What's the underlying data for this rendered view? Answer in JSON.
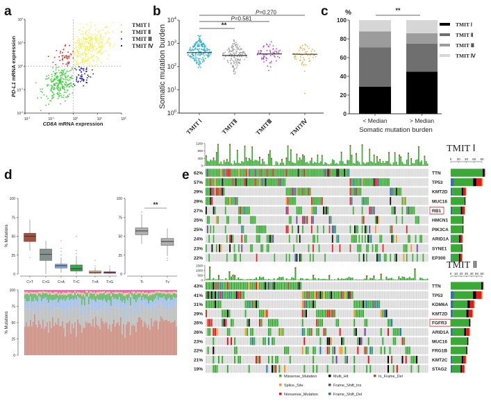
{
  "panels": {
    "a": "a",
    "b": "b",
    "c": "c",
    "d": "d",
    "e": "e"
  },
  "colors": {
    "tmit_scatter": [
      "#f5f056",
      "#3fd13f",
      "#d42a2a",
      "#1a1aa8"
    ],
    "tmit_burden": [
      "#2bb3d6",
      "#a8a8a8",
      "#b535d6",
      "#f5a836"
    ],
    "tmit_stack": [
      "#000000",
      "#6f6f6f",
      "#9c9c9c",
      "#d6d6d6"
    ],
    "substitutions": [
      "#a3503f",
      "#85918e",
      "#7fa7e3",
      "#3aa64a",
      "#f2a07c",
      "#c2205a"
    ],
    "titv": "#b0b0b0",
    "mutation_types": {
      "Missense_Mutation": "#3aa935",
      "Multi_Hit": "#000000",
      "In_Frame_Del": "#a0522d",
      "Splice_Site": "#f7941d",
      "Frame_Shift_Ins": "#6a3d9a",
      "Nonsense_Mutation": "#e31a1c",
      "Frame_Shift_Del": "#1f78b4"
    },
    "cell_bg": "#d9d9d9",
    "highlight_box": "#d42a2a"
  },
  "chart_data": [
    {
      "panel": "a",
      "type": "scatter",
      "xlabel_italic": "CD8A",
      "xlabel_rest": " mRNA expression",
      "ylabel_italic": "PD-L1",
      "ylabel_rest": " mRNA expression",
      "x_scale": "log",
      "y_scale": "log",
      "xlim": [
        0.01,
        100
      ],
      "ylim": [
        0.01,
        100
      ],
      "tick_exponents": [
        -2,
        -1,
        0,
        1,
        2
      ],
      "threshold_lines": {
        "x": 1,
        "y": 1,
        "style": "dashed"
      },
      "legend": [
        "TMIT Ⅰ",
        "TMIT Ⅱ",
        "TMIT Ⅲ",
        "TMIT Ⅳ"
      ],
      "legend_position": "right"
    },
    {
      "panel": "b",
      "type": "scatter",
      "ylabel": "Somatic mutation burden",
      "y_scale": "log",
      "ylim": [
        1,
        10000
      ],
      "tick_exponents": [
        0,
        1,
        2,
        3,
        4
      ],
      "categories": [
        "TMIT Ⅰ",
        "TMITⅡ",
        "TMITⅢ",
        "TMITⅣ"
      ],
      "medians": [
        400,
        300,
        350,
        340
      ],
      "comparisons": [
        {
          "from": 0,
          "to": 3,
          "label_p": "P",
          "label_rest": "=0.270"
        },
        {
          "from": 0,
          "to": 2,
          "label_p": "P",
          "label_rest": "=0.581"
        },
        {
          "from": 0,
          "to": 1,
          "label_p": "",
          "label_rest": "**"
        }
      ]
    },
    {
      "panel": "c",
      "type": "bar",
      "stacked": true,
      "ylabel": "%",
      "xlabel": "Somatic mutation burden",
      "ylim": [
        0,
        100
      ],
      "yticks": [
        0,
        20,
        40,
        60,
        80,
        100
      ],
      "categories": [
        "< Median",
        "> Median"
      ],
      "series": [
        {
          "name": "TMIT Ⅰ",
          "values": [
            29,
            45
          ]
        },
        {
          "name": "TMIT Ⅱ",
          "values": [
            42,
            30
          ]
        },
        {
          "name": "TMIT Ⅲ",
          "values": [
            17,
            11
          ]
        },
        {
          "name": "TMIT Ⅳ",
          "values": [
            12,
            14
          ]
        }
      ],
      "significance": "**",
      "legend_position": "right"
    },
    {
      "panel": "d",
      "type": "box",
      "ylabel": "% Mutations",
      "ylim": [
        0,
        100
      ],
      "yticks": [
        0,
        25,
        50,
        75,
        100
      ],
      "categories": [
        "C>T",
        "C>G",
        "C>A",
        "T>C",
        "T>A",
        "T>G"
      ],
      "boxes": [
        {
          "min": 31,
          "q1": 43,
          "median": 50,
          "q3": 54,
          "max": 72,
          "outliers": [
            22
          ]
        },
        {
          "min": 0,
          "q1": 18,
          "median": 26,
          "q3": 33,
          "max": 44,
          "outliers": []
        },
        {
          "min": 2,
          "q1": 8,
          "median": 11,
          "q3": 13,
          "max": 22,
          "outliers": [
            25,
            30,
            34,
            44
          ]
        },
        {
          "min": 0,
          "q1": 4,
          "median": 7,
          "q3": 12,
          "max": 24,
          "outliers": [
            27,
            31,
            50
          ]
        },
        {
          "min": 0,
          "q1": 1,
          "median": 2,
          "q3": 4,
          "max": 9,
          "outliers": [
            11,
            18
          ]
        },
        {
          "min": 0,
          "q1": 1,
          "median": 2,
          "q3": 3,
          "max": 8,
          "outliers": [
            10
          ]
        }
      ]
    },
    {
      "panel": "d",
      "type": "box",
      "ylim": [
        0,
        100
      ],
      "yticks": [
        0,
        25,
        50,
        75,
        100
      ],
      "categories": [
        "Ti",
        "Tv"
      ],
      "boxes": [
        {
          "min": 40,
          "q1": 52,
          "median": 57,
          "q3": 61,
          "max": 79,
          "outliers": [
            82
          ]
        },
        {
          "min": 24,
          "q1": 38,
          "median": 43,
          "q3": 47,
          "max": 60,
          "outliers": [
            18,
            21
          ]
        }
      ],
      "significance": "**"
    },
    {
      "panel": "d",
      "type": "bar",
      "stacked": true,
      "ylabel": "% Mutations",
      "ylim": [
        0,
        100
      ],
      "yticks": [
        0,
        25,
        50,
        75,
        100
      ],
      "series_order": [
        "C>T",
        "C>G",
        "C>A",
        "T>C",
        "T>A",
        "T>G"
      ]
    },
    {
      "panel": "e",
      "type": "heatmap",
      "title": "TMIT Ⅰ",
      "tmb_ticks": [
        0,
        400,
        800,
        1200
      ],
      "genes": [
        "TTN",
        "TP53",
        "KMT2D",
        "MUC16",
        "RB1",
        "HMCN1",
        "PIK3CA",
        "ARID1A",
        "SYNE1",
        "EP300"
      ],
      "percent": [
        "62%",
        "57%",
        "29%",
        "29%",
        "27%",
        "25%",
        "25%",
        "24%",
        "23%",
        "22%"
      ],
      "highlight": "RB1",
      "count_ticks": [
        0,
        20,
        40,
        60,
        80
      ],
      "counts": [
        88,
        82,
        40,
        38,
        37,
        33,
        33,
        31,
        30,
        30
      ]
    },
    {
      "panel": "e",
      "type": "heatmap",
      "title": "TMIT Ⅱ",
      "tmb_ticks": [
        0,
        500,
        1000,
        1500
      ],
      "genes": [
        "TTN",
        "TP53",
        "KDM6A",
        "KMT2D",
        "FGFR3",
        "ARID1A",
        "MUC16",
        "FRG1B",
        "KMT2C",
        "STAG2"
      ],
      "percent": [
        "43%",
        "41%",
        "31%",
        "29%",
        "26%",
        "26%",
        "23%",
        "22%",
        "21%",
        "19%"
      ],
      "highlight": "FGFR3",
      "count_ticks": [
        0,
        10,
        20,
        30,
        40,
        50,
        60
      ],
      "counts": [
        63,
        61,
        46,
        43,
        38,
        37,
        34,
        32,
        30,
        27
      ]
    }
  ],
  "legend_e": [
    "Missense_Mutation",
    "Multi_Hit",
    "In_Frame_Del",
    "Splice_Site",
    "Frame_Shift_Ins",
    "Nonsense_Mutation",
    "Frame_Shift_Del"
  ]
}
